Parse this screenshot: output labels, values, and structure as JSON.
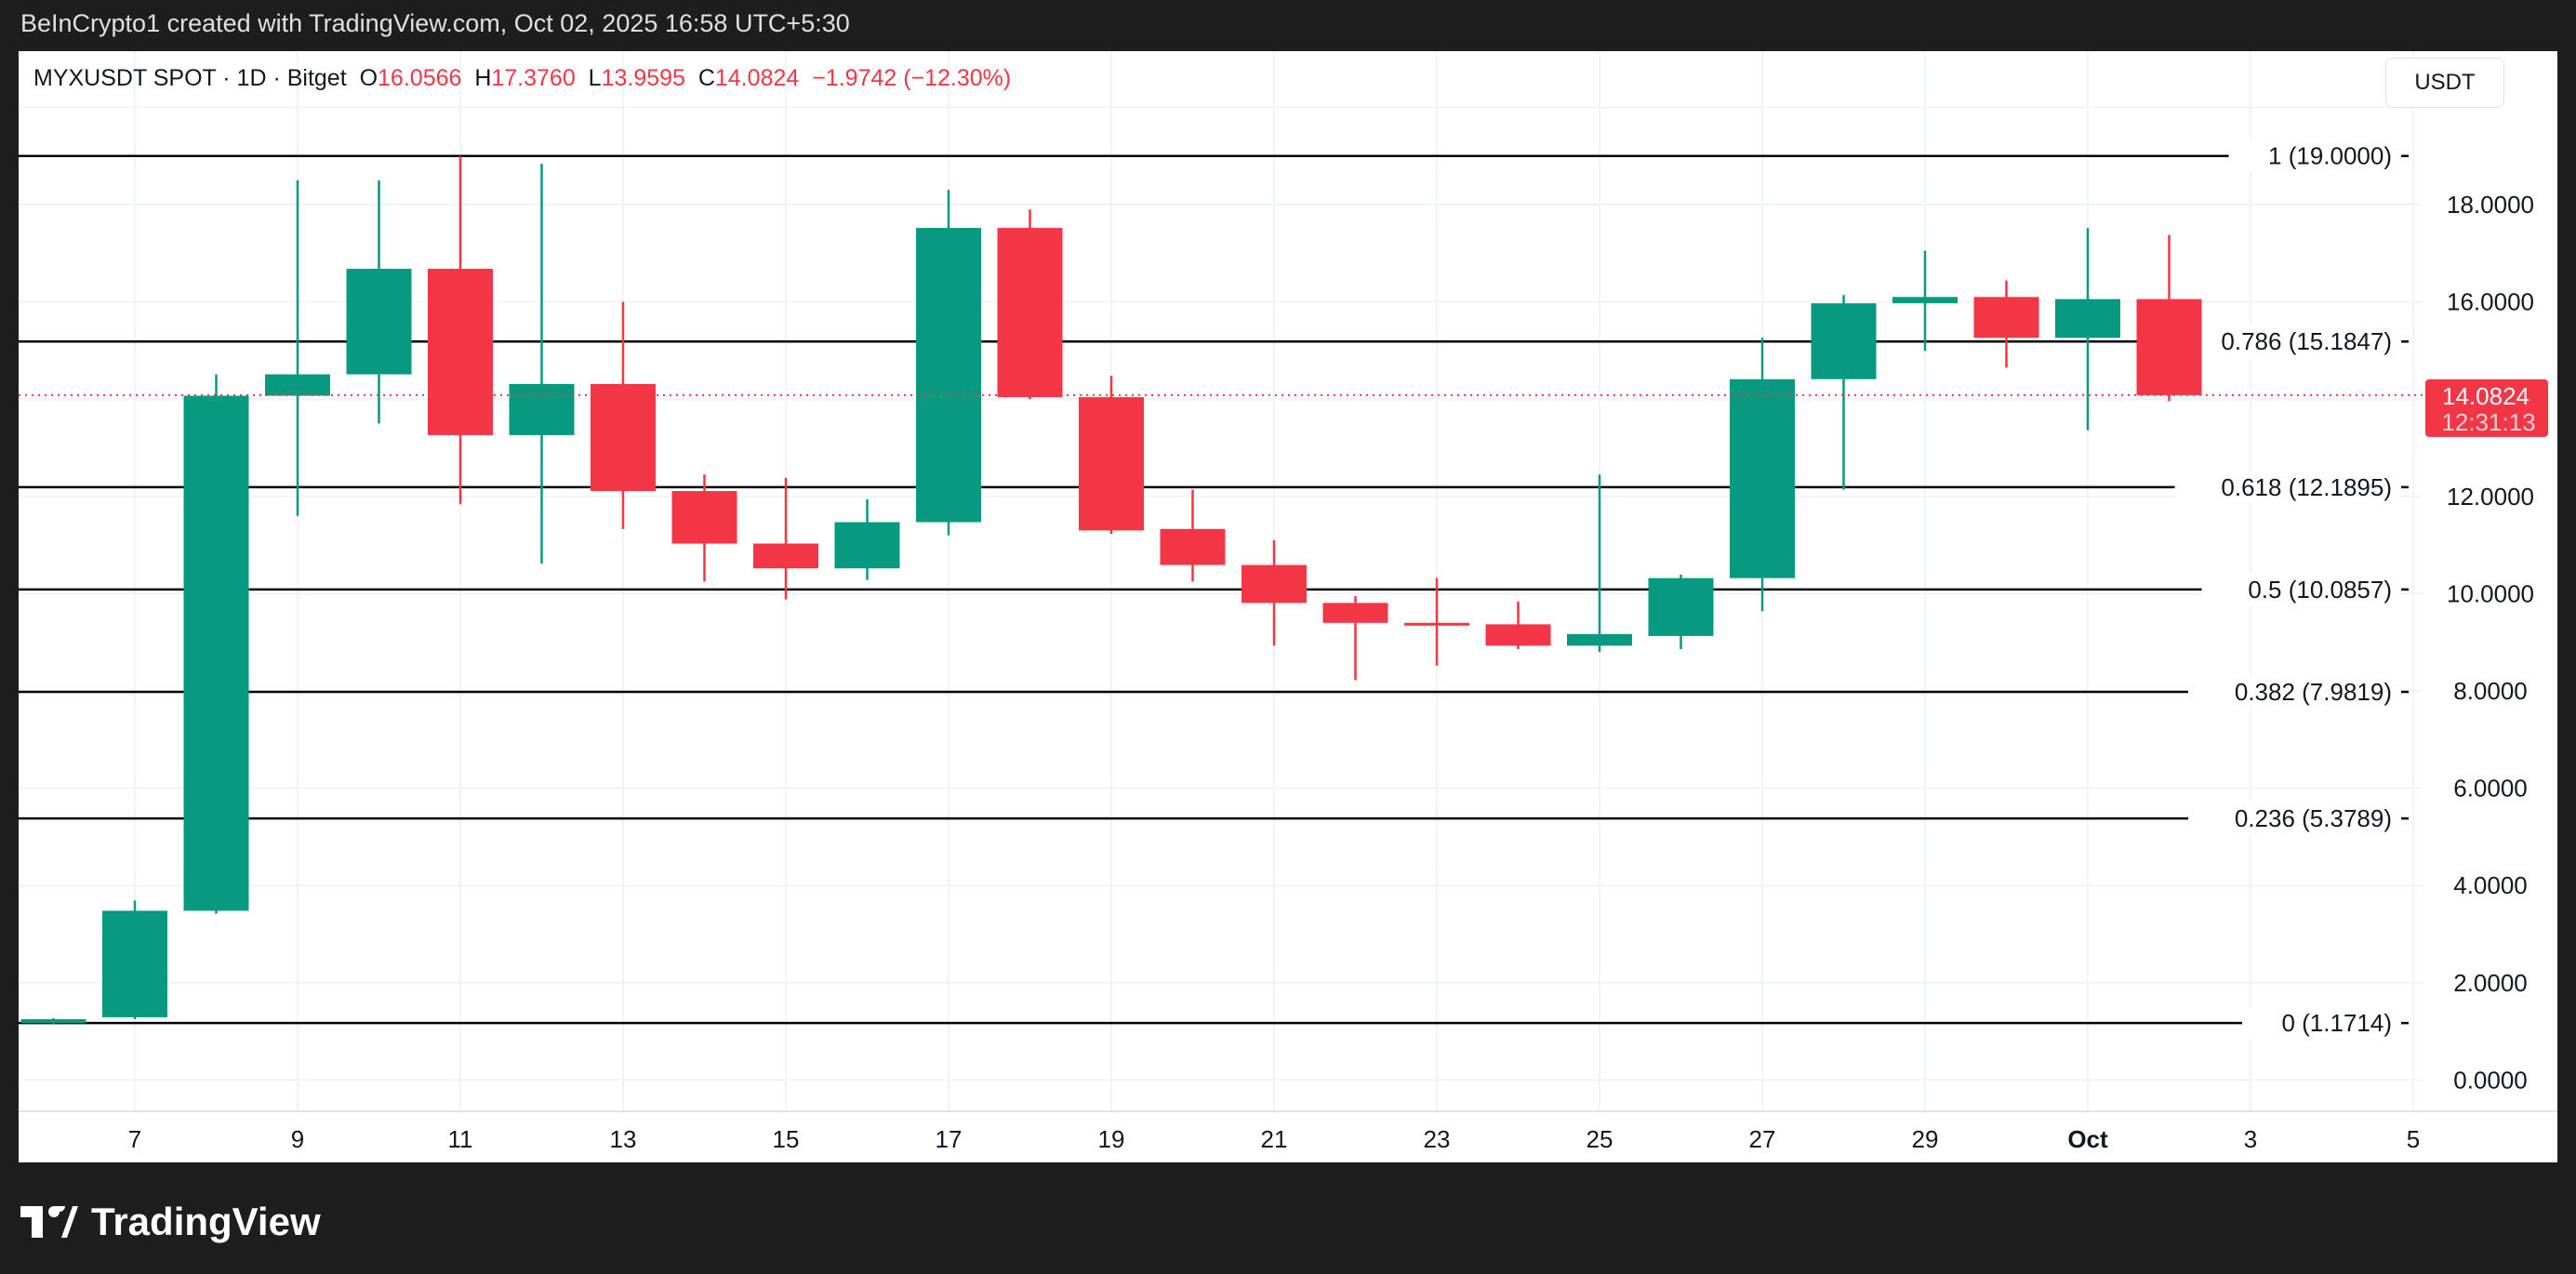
{
  "credit": "BeInCrypto1 created with TradingView.com, Oct 02, 2025 16:58 UTC+5:30",
  "legend": {
    "symbol": "MYXUSDT SPOT · 1D · Bitget",
    "o_label": "O",
    "o": "16.0566",
    "h_label": "H",
    "h": "17.3760",
    "l_label": "L",
    "l": "13.9595",
    "c_label": "C",
    "c": "14.0824",
    "change": "−1.9742 (−12.30%)"
  },
  "currency_button": "USDT",
  "logo_text": "TradingView",
  "colors": {
    "up": "#089981",
    "down": "#f23645",
    "fib": "#000000"
  },
  "chart_data": {
    "type": "candlestick",
    "ylim": [
      -0.3,
      20
    ],
    "y_ticks": [
      "0.0000",
      "2.0000",
      "4.0000",
      "6.0000",
      "8.0000",
      "10.0000",
      "12.0000",
      "16.0000",
      "18.0000"
    ],
    "y_tick_values": [
      0,
      2,
      4,
      6,
      8,
      10,
      12,
      16,
      18
    ],
    "x_ticks": [
      {
        "day": 7,
        "label": "7"
      },
      {
        "day": 9,
        "label": "9"
      },
      {
        "day": 11,
        "label": "11"
      },
      {
        "day": 13,
        "label": "13"
      },
      {
        "day": 15,
        "label": "15"
      },
      {
        "day": 17,
        "label": "17"
      },
      {
        "day": 19,
        "label": "19"
      },
      {
        "day": 21,
        "label": "21"
      },
      {
        "day": 23,
        "label": "23"
      },
      {
        "day": 25,
        "label": "25"
      },
      {
        "day": 27,
        "label": "27"
      },
      {
        "day": 29,
        "label": "29"
      },
      {
        "day": 31,
        "label": "Oct"
      },
      {
        "day": 33,
        "label": "3"
      },
      {
        "day": 35,
        "label": "5"
      }
    ],
    "candles": [
      {
        "date": "Sep 6",
        "o": 1.17,
        "h": 1.27,
        "l": 1.15,
        "c": 1.25
      },
      {
        "date": "Sep 7",
        "o": 1.29,
        "h": 3.69,
        "l": 1.25,
        "c": 3.48
      },
      {
        "date": "Sep 8",
        "o": 3.48,
        "h": 14.51,
        "l": 3.42,
        "c": 14.07
      },
      {
        "date": "Sep 9",
        "o": 14.07,
        "h": 18.5,
        "l": 11.6,
        "c": 14.51
      },
      {
        "date": "Sep 10",
        "o": 14.51,
        "h": 18.5,
        "l": 13.5,
        "c": 16.68
      },
      {
        "date": "Sep 11",
        "o": 16.68,
        "h": 19.0,
        "l": 11.84,
        "c": 13.26
      },
      {
        "date": "Sep 12",
        "o": 13.26,
        "h": 18.84,
        "l": 10.62,
        "c": 14.31
      },
      {
        "date": "Sep 13",
        "o": 14.31,
        "h": 16.0,
        "l": 11.33,
        "c": 12.11
      },
      {
        "date": "Sep 14",
        "o": 12.11,
        "h": 12.45,
        "l": 10.25,
        "c": 11.03
      },
      {
        "date": "Sep 15",
        "o": 11.03,
        "h": 12.38,
        "l": 9.88,
        "c": 10.52
      },
      {
        "date": "Sep 16",
        "o": 10.52,
        "h": 11.94,
        "l": 10.28,
        "c": 11.47
      },
      {
        "date": "Sep 17",
        "o": 11.47,
        "h": 18.3,
        "l": 11.2,
        "c": 17.52
      },
      {
        "date": "Sep 18",
        "o": 17.52,
        "h": 17.9,
        "l": 14.0,
        "c": 14.04
      },
      {
        "date": "Sep 19",
        "o": 14.04,
        "h": 14.48,
        "l": 11.23,
        "c": 11.3
      },
      {
        "date": "Sep 20",
        "o": 11.33,
        "h": 12.14,
        "l": 10.25,
        "c": 10.59
      },
      {
        "date": "Sep 21",
        "o": 10.59,
        "h": 11.1,
        "l": 8.93,
        "c": 9.81
      },
      {
        "date": "Sep 22",
        "o": 9.81,
        "h": 9.95,
        "l": 8.22,
        "c": 9.4
      },
      {
        "date": "Sep 23",
        "o": 9.4,
        "h": 10.32,
        "l": 8.52,
        "c": 9.36
      },
      {
        "date": "Sep 24",
        "o": 9.37,
        "h": 9.84,
        "l": 8.86,
        "c": 8.93
      },
      {
        "date": "Sep 25",
        "o": 8.93,
        "h": 12.45,
        "l": 8.8,
        "c": 9.17
      },
      {
        "date": "Sep 26",
        "o": 9.13,
        "h": 10.39,
        "l": 8.86,
        "c": 10.32
      },
      {
        "date": "Sep 27",
        "o": 10.32,
        "h": 15.26,
        "l": 9.64,
        "c": 14.41
      },
      {
        "date": "Sep 28",
        "o": 14.41,
        "h": 16.14,
        "l": 12.14,
        "c": 15.97
      },
      {
        "date": "Sep 29",
        "o": 15.97,
        "h": 17.05,
        "l": 14.99,
        "c": 16.1
      },
      {
        "date": "Sep 30",
        "o": 16.1,
        "h": 16.44,
        "l": 14.65,
        "c": 15.26
      },
      {
        "date": "Oct 1",
        "o": 15.26,
        "h": 17.52,
        "l": 13.36,
        "c": 16.0566
      },
      {
        "date": "Oct 2",
        "o": 16.0566,
        "h": 17.376,
        "l": 13.9595,
        "c": 14.0824
      }
    ],
    "fib_levels": [
      {
        "ratio": "1",
        "price": 19.0,
        "label": "1 (19.0000)"
      },
      {
        "ratio": "0.786",
        "price": 15.1847,
        "label": "0.786 (15.1847)"
      },
      {
        "ratio": "0.618",
        "price": 12.1895,
        "label": "0.618 (12.1895)"
      },
      {
        "ratio": "0.5",
        "price": 10.0857,
        "label": "0.5 (10.0857)"
      },
      {
        "ratio": "0.382",
        "price": 7.9819,
        "label": "0.382 (7.9819)"
      },
      {
        "ratio": "0.236",
        "price": 5.3789,
        "label": "0.236 (5.3789)"
      },
      {
        "ratio": "0",
        "price": 1.1714,
        "label": "0 (1.1714)"
      }
    ],
    "last_price": {
      "value": 14.0824,
      "label": "14.0824",
      "countdown": "12:31:13"
    }
  }
}
